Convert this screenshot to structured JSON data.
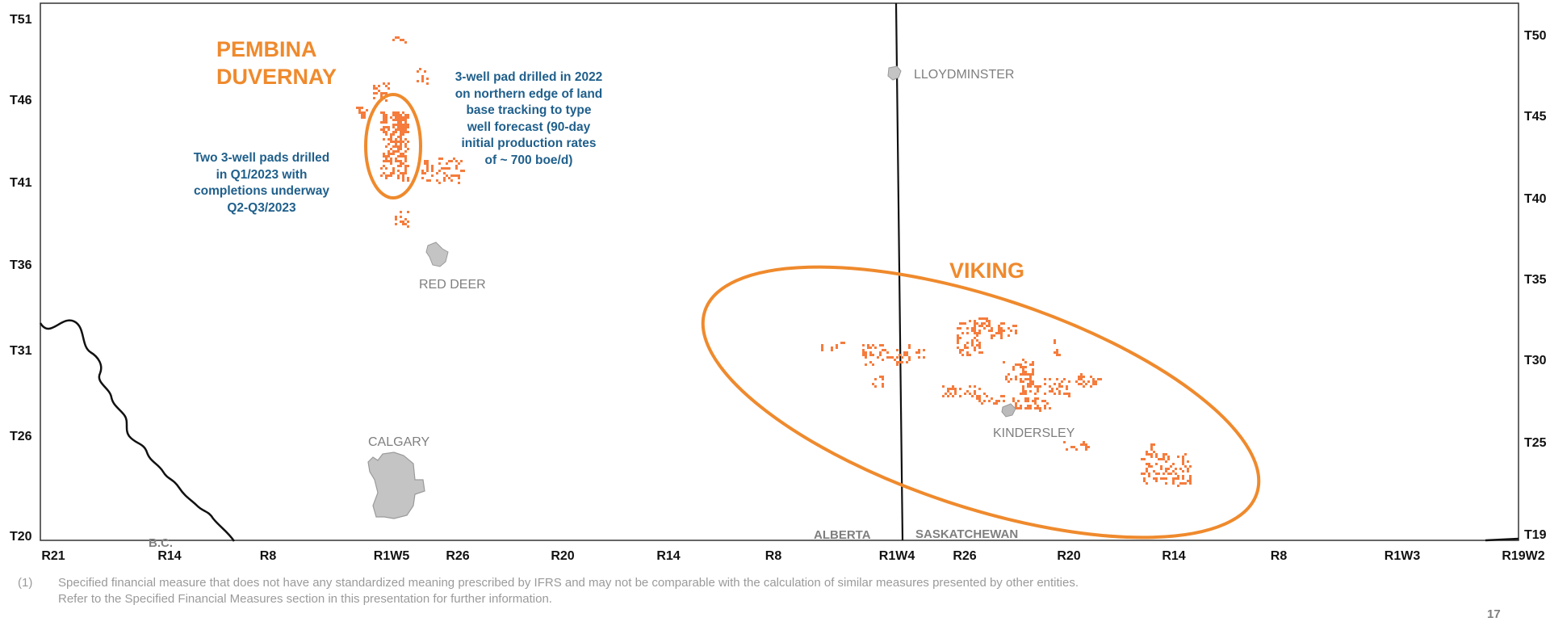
{
  "map": {
    "left_township_labels": [
      "T51",
      "T46",
      "T41",
      "T36",
      "T31",
      "T26",
      "T20"
    ],
    "right_township_labels": [
      "T50",
      "T45",
      "T40",
      "T35",
      "T30",
      "T25",
      "T19"
    ],
    "range_labels": [
      "R21",
      "R14",
      "R8",
      "R1W5",
      "R26",
      "R20",
      "R14",
      "R8",
      "R1W4",
      "R26",
      "R20",
      "R14",
      "R8",
      "R1W3",
      "R19W2"
    ],
    "provinces": {
      "bc": "B.C.",
      "alberta": "ALBERTA",
      "saskatchewan": "SASKATCHEWAN"
    },
    "towns": {
      "lloydminster": "LLOYDMINSTER",
      "red_deer": "RED DEER",
      "calgary": "CALGARY",
      "kindersley": "KINDERSLEY"
    },
    "areas": {
      "pembina_duvernay": [
        "PEMBINA",
        "DUVERNAY"
      ],
      "viking": "VIKING"
    },
    "callouts": {
      "west": [
        "Two 3-well pads drilled",
        "in Q1/2023 with",
        "completions underway",
        "Q2-Q3/2023"
      ],
      "east": [
        "3-well pad drilled in 2022",
        "on northern edge of land",
        "base tracking to type",
        "well forecast (90-day",
        "initial production rates",
        "of ~ 700 boe/d)"
      ]
    },
    "colors": {
      "accent_orange": "#ef8a2d",
      "land_orange": "#f57c3d",
      "callout_blue": "#1f5f8b",
      "town_gray": "#c4c4c4",
      "border_black": "#000000"
    }
  },
  "footnote": {
    "marker": "(1)",
    "lines": [
      "Specified financial measure that does not have any standardized meaning prescribed by IFRS and may not be comparable with the calculation of similar measures presented by other entities.",
      "Refer to the Specified Financial Measures section in this presentation for further information."
    ]
  },
  "page_number": "17"
}
